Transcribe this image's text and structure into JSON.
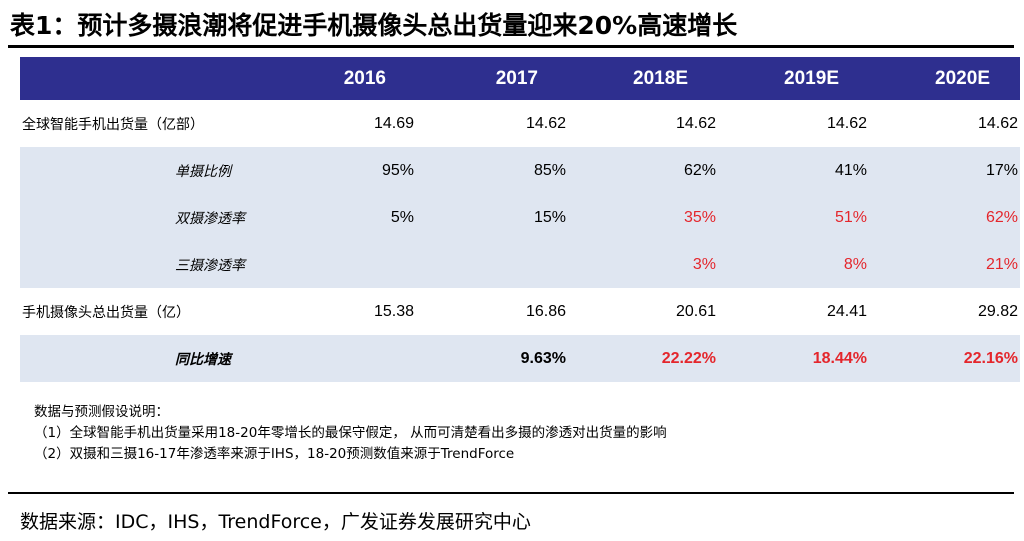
{
  "title": "表1：预计多摄浪潮将促进手机摄像头总出货量迎来20%高速增长",
  "table": {
    "headers": [
      "",
      "2016",
      "2017",
      "2018E",
      "2019E",
      "2020E"
    ],
    "rows": [
      {
        "label": "全球智能手机出货量（亿部）",
        "values": [
          "14.69",
          "14.62",
          "14.62",
          "14.62",
          "14.62"
        ]
      },
      {
        "label": "单摄比例",
        "values": [
          "95%",
          "85%",
          "62%",
          "41%",
          "17%"
        ]
      },
      {
        "label": "双摄渗透率",
        "values": [
          "5%",
          "15%",
          "35%",
          "51%",
          "62%"
        ]
      },
      {
        "label": "三摄渗透率",
        "values": [
          "",
          "",
          "3%",
          "8%",
          "21%"
        ]
      },
      {
        "label": "手机摄像头总出货量（亿）",
        "values": [
          "15.38",
          "16.86",
          "20.61",
          "24.41",
          "29.82"
        ]
      },
      {
        "label": "同比增速",
        "values": [
          "",
          "9.63%",
          "22.22%",
          "18.44%",
          "22.16%"
        ]
      }
    ]
  },
  "notes": {
    "heading": "数据与预测假设说明：",
    "line1": "（1）全球智能手机出货量采用18-20年零增长的最保守假定， 从而可清楚看出多摄的渗透对出货量的影响",
    "line2": "（2）双摄和三摄16-17年渗透率来源于IHS，18-20预测数值来源于TrendForce"
  },
  "source": "数据来源：IDC，IHS，TrendForce，广发证券发展研究中心",
  "colors": {
    "header_bg": "#2e2f8f",
    "shade": "#dfe6f1",
    "highlight": "#e4262c"
  }
}
